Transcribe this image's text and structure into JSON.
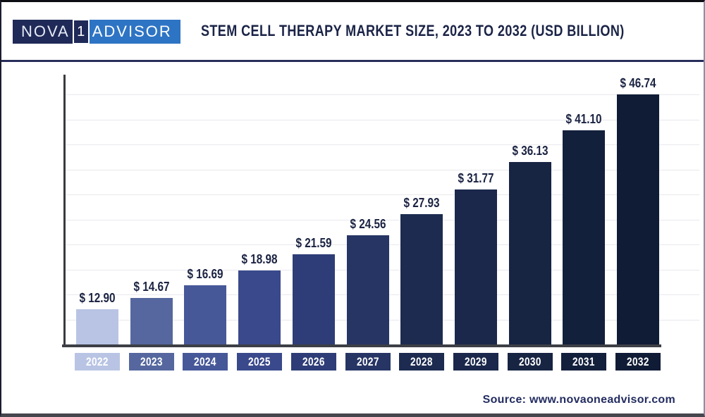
{
  "header": {
    "logo": {
      "nova": "NOVA",
      "one": "1",
      "advisor": "ADVISOR"
    },
    "title": "STEM CELL THERAPY MARKET SIZE, 2023 TO 2032 (USD BILLION)"
  },
  "chart_data": {
    "type": "bar",
    "title": "STEM CELL THERAPY MARKET SIZE, 2023 TO 2032 (USD BILLION)",
    "unit": "USD Billion",
    "categories": [
      "2022",
      "2023",
      "2024",
      "2025",
      "2026",
      "2027",
      "2028",
      "2029",
      "2030",
      "2031",
      "2032"
    ],
    "values": [
      12.9,
      14.67,
      16.69,
      18.98,
      21.59,
      24.56,
      27.93,
      31.77,
      36.13,
      41.1,
      46.74
    ],
    "value_labels": [
      "$ 12.90",
      "$ 14.67",
      "$ 16.69",
      "$ 18.98",
      "$ 21.59",
      "$ 24.56",
      "$ 27.93",
      "$ 31.77",
      "$ 36.13",
      "$ 41.10",
      "$ 46.74"
    ],
    "bar_colors": [
      "#b9c4e4",
      "#55679e",
      "#475899",
      "#3a498b",
      "#2e3d77",
      "#273565",
      "#1d2b50",
      "#1b284b",
      "#172442",
      "#13203c",
      "#101c36"
    ],
    "xlabel": "",
    "ylabel": "",
    "grid": true,
    "gridline_color": "#e9e9ef",
    "axis_color": "#3d3f46",
    "label_color": "#1b2342",
    "y_tick_labels_visible": false,
    "legend": "none"
  },
  "footer": {
    "source": "Source: www.novaoneadvisor.com"
  },
  "colors": {
    "title_text": "#1b2447",
    "logo_left_bg": "#1f2a58",
    "logo_right_bg": "#2e74c4",
    "header_divider": "#272e5a"
  }
}
